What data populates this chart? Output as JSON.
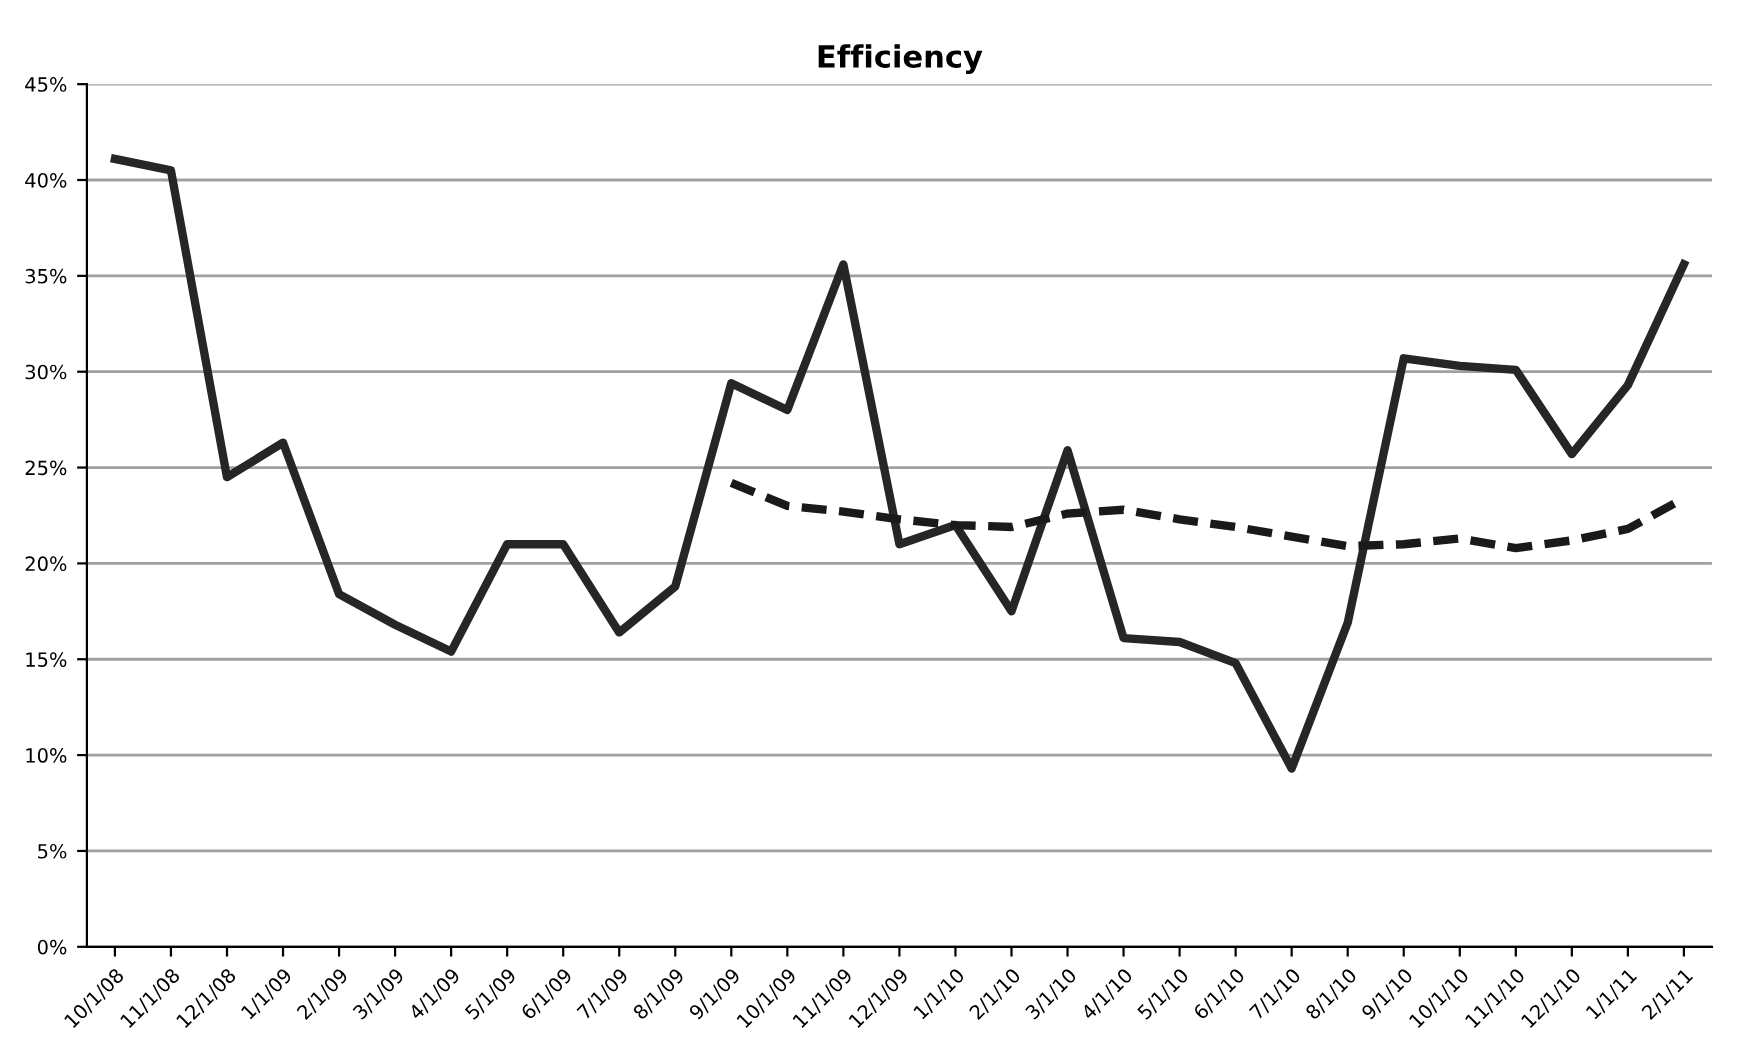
{
  "chart_data": {
    "type": "line",
    "title": "Efficiency",
    "categories": [
      "10/1/08",
      "11/1/08",
      "12/1/08",
      "1/1/09",
      "2/1/09",
      "3/1/09",
      "4/1/09",
      "5/1/09",
      "6/1/09",
      "7/1/09",
      "8/1/09",
      "9/1/09",
      "10/1/09",
      "11/1/09",
      "12/1/09",
      "1/1/10",
      "2/1/10",
      "3/1/10",
      "4/1/10",
      "5/1/10",
      "6/1/10",
      "7/1/10",
      "8/1/10",
      "9/1/10",
      "10/1/10",
      "11/1/10",
      "12/1/10",
      "1/1/11",
      "2/1/11"
    ],
    "series": [
      {
        "color": "#262626",
        "line_style": "solid",
        "values": [
          41.1,
          40.5,
          24.5,
          26.3,
          18.4,
          16.8,
          15.4,
          21.0,
          21.0,
          16.4,
          18.8,
          29.4,
          28.0,
          35.6,
          21.0,
          22.0,
          17.5,
          25.9,
          16.1,
          15.9,
          14.8,
          9.3,
          16.9,
          30.7,
          30.3,
          30.1,
          25.7,
          29.3,
          35.6
        ]
      },
      {
        "color": "#1a1a1a",
        "line_style": "dashed",
        "values": [
          null,
          null,
          null,
          null,
          null,
          null,
          null,
          null,
          null,
          null,
          null,
          24.2,
          23.0,
          22.7,
          22.3,
          22.0,
          21.9,
          22.6,
          22.8,
          22.3,
          21.9,
          21.4,
          20.9,
          21.0,
          21.3,
          20.8,
          21.2,
          21.8,
          23.4
        ]
      }
    ],
    "ylim": [
      0,
      45
    ],
    "yticks": [
      {
        "value": 0,
        "label": "0%"
      },
      {
        "value": 5,
        "label": "5%"
      },
      {
        "value": 10,
        "label": "10%"
      },
      {
        "value": 15,
        "label": "15%"
      },
      {
        "value": 20,
        "label": "20%"
      },
      {
        "value": 25,
        "label": "25%"
      },
      {
        "value": 30,
        "label": "30%"
      },
      {
        "value": 35,
        "label": "35%"
      },
      {
        "value": 40,
        "label": "40%"
      },
      {
        "value": 45,
        "label": "45%"
      }
    ],
    "grid": "y",
    "marker": "none"
  }
}
